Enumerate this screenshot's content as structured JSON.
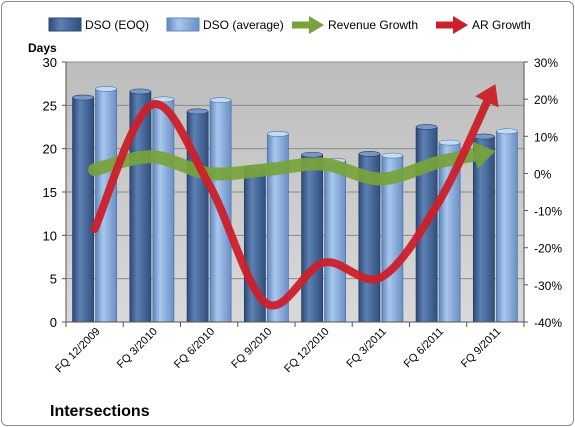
{
  "chart_data": {
    "type": "bar",
    "title": "Intersections",
    "ylabel": "Days",
    "categories": [
      "FQ 12/2009",
      "FQ 3/2010",
      "FQ 6/2010",
      "FQ 9/2010",
      "FQ 12/2010",
      "FQ 3/2011",
      "FQ 6/2011",
      "FQ 9/2011"
    ],
    "ylim": [
      0,
      30
    ],
    "y_ticks": [
      "0",
      "5",
      "10",
      "15",
      "20",
      "25",
      "30"
    ],
    "y2lim": [
      -40,
      30
    ],
    "y2_ticks": [
      "-40%",
      "-30%",
      "-20%",
      "-10%",
      "0%",
      "10%",
      "20%",
      "30%"
    ],
    "legend_position": "top",
    "series": [
      {
        "name": "DSO (EOQ)",
        "kind": "bar",
        "axis": "left",
        "color": "#4f6f9f",
        "values": [
          25.9,
          26.6,
          24.3,
          17.8,
          19.3,
          19.4,
          22.5,
          21.4
        ]
      },
      {
        "name": "DSO (average)",
        "kind": "bar",
        "axis": "left",
        "color": "#8fb4e3",
        "values": [
          26.9,
          25.7,
          25.6,
          21.7,
          18.6,
          19.2,
          20.7,
          22.0
        ]
      },
      {
        "name": "Revenue Growth",
        "kind": "line-arrow",
        "axis": "right",
        "color": "#77a33a",
        "values": [
          1,
          4.5,
          0,
          1,
          2.5,
          -1.5,
          3,
          6
        ]
      },
      {
        "name": "AR Growth",
        "kind": "line-arrow",
        "axis": "right",
        "color": "#cc1f2a",
        "values": [
          -15,
          18.5,
          -3,
          -35,
          -24,
          -28,
          -8,
          24
        ]
      }
    ]
  }
}
